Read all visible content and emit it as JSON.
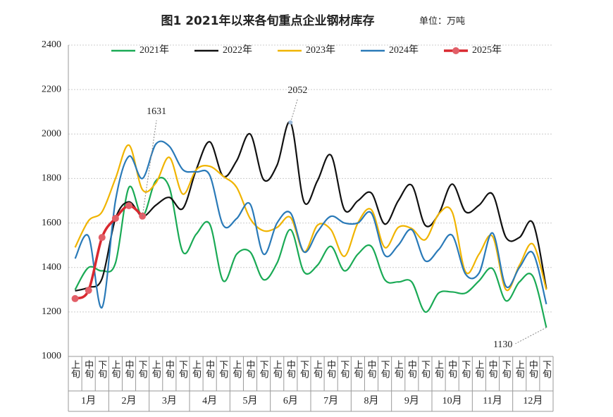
{
  "chart_data": {
    "type": "line",
    "title": "图1 2021年以来各旬重点企业钢材库存",
    "unit": "单位：万吨",
    "categories": [
      "上旬",
      "中旬",
      "下旬",
      "上旬",
      "中旬",
      "下旬",
      "上旬",
      "中旬",
      "下旬",
      "上旬",
      "中旬",
      "下旬",
      "上旬",
      "中旬",
      "下旬",
      "上旬",
      "中旬",
      "下旬",
      "上旬",
      "中旬",
      "下旬",
      "上旬",
      "中旬",
      "下旬",
      "上旬",
      "中旬",
      "下旬",
      "上旬",
      "中旬",
      "下旬",
      "上旬",
      "中旬",
      "下旬",
      "上旬",
      "中旬",
      "下旬"
    ],
    "months": [
      "1月",
      "2月",
      "3月",
      "4月",
      "5月",
      "6月",
      "7月",
      "8月",
      "9月",
      "10月",
      "11月",
      "12月"
    ],
    "ylim": [
      1000,
      2400
    ],
    "yticks": [
      1000,
      1200,
      1400,
      1600,
      1800,
      2000,
      2200,
      2400
    ],
    "grid": true,
    "legend": "top",
    "series": [
      {
        "name": "2021年",
        "color": "#1aaa55",
        "labels_at": [
          35
        ],
        "values": [
          1300,
          1400,
          1385,
          1420,
          1760,
          1630,
          1790,
          1760,
          1470,
          1550,
          1595,
          1340,
          1460,
          1470,
          1345,
          1420,
          1570,
          1380,
          1410,
          1495,
          1385,
          1460,
          1495,
          1345,
          1335,
          1335,
          1200,
          1285,
          1290,
          1285,
          1340,
          1395,
          1250,
          1335,
          1360,
          1130
        ]
      },
      {
        "name": "2022年",
        "color": "#111111",
        "labels_at": [
          16
        ],
        "values": [
          1295,
          1310,
          1350,
          1620,
          1695,
          1630,
          1680,
          1715,
          1665,
          1840,
          1965,
          1810,
          1880,
          2000,
          1795,
          1860,
          2052,
          1695,
          1790,
          1905,
          1660,
          1700,
          1735,
          1595,
          1700,
          1770,
          1590,
          1640,
          1775,
          1650,
          1680,
          1730,
          1535,
          1535,
          1600,
          1305
        ]
      },
      {
        "name": "2023年",
        "color": "#f0b400",
        "labels_at": [],
        "values": [
          1490,
          1610,
          1650,
          1800,
          1950,
          1750,
          1780,
          1895,
          1730,
          1840,
          1855,
          1810,
          1760,
          1620,
          1565,
          1580,
          1625,
          1470,
          1590,
          1570,
          1450,
          1600,
          1660,
          1490,
          1580,
          1575,
          1525,
          1640,
          1650,
          1380,
          1460,
          1540,
          1300,
          1410,
          1505,
          1300
        ]
      },
      {
        "name": "2024年",
        "color": "#2a7ab8",
        "labels_at": [],
        "values": [
          1440,
          1540,
          1220,
          1700,
          1900,
          1800,
          1955,
          1945,
          1840,
          1830,
          1815,
          1590,
          1620,
          1685,
          1460,
          1600,
          1645,
          1470,
          1560,
          1630,
          1600,
          1600,
          1645,
          1455,
          1500,
          1570,
          1430,
          1480,
          1545,
          1370,
          1375,
          1555,
          1315,
          1400,
          1465,
          1235
        ]
      },
      {
        "name": "2025年",
        "color": "#d9282f",
        "marker_color": "#e25f68",
        "markers": true,
        "labels_at": [
          5
        ],
        "values": [
          1260,
          1297,
          1535,
          1621,
          1678,
          1631,
          null,
          null,
          null,
          null,
          null,
          null,
          null,
          null,
          null,
          null,
          null,
          null,
          null,
          null,
          null,
          null,
          null,
          null,
          null,
          null,
          null,
          null,
          null,
          null,
          null,
          null,
          null,
          null,
          null,
          null
        ]
      }
    ]
  }
}
